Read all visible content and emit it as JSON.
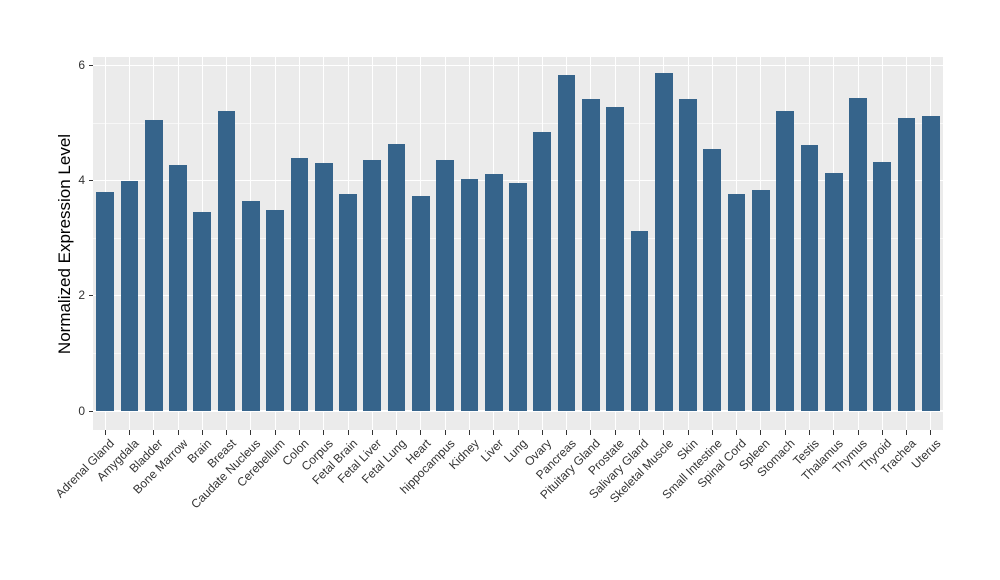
{
  "chart_data": {
    "type": "bar",
    "title": "",
    "xlabel": "",
    "ylabel": "Normalized Expression Level",
    "ylim": [
      0,
      6.2
    ],
    "yticks": [
      0,
      2,
      4,
      6
    ],
    "ytick_labels": [
      "0",
      "2",
      "4",
      "6"
    ],
    "minor_ticks": [
      1,
      3,
      5
    ],
    "legend_position": "none",
    "grid": "white major and minor horizontal lines, white vertical line at each category center, on gray panel",
    "bar_color": "#36648B",
    "panel_bg": "#EBEBEB",
    "major_grid_color": "#FFFFFF",
    "minor_grid_color": "rgba(255,255,255,0.6)",
    "axis_text_color": "#333333",
    "axis_title_color": "#000000",
    "tick_mark_color": "#333333",
    "categories": [
      "Adrenal Gland",
      "Amygdala",
      "Bladder",
      "Bone Marrow",
      "Brain",
      "Breast",
      "Caudate Nucleus",
      "Cerebellum",
      "Colon",
      "Corpus",
      "Fetal Brain",
      "Fetal Liver",
      "Fetal Lung",
      "Heart",
      "hippocampus",
      "Kidney",
      "Liver",
      "Lung",
      "Ovary",
      "Pancreas",
      "Pituitary Gland",
      "Prostate",
      "Salivary Gland",
      "Skeletal Muscle",
      "Skin",
      "Small Intestine",
      "Spinal Cord",
      "Spleen",
      "Stomach",
      "Testis",
      "Thalamus",
      "Thymus",
      "Thyroid",
      "Trachea",
      "Uterus"
    ],
    "values": [
      3.8,
      4.0,
      5.05,
      4.27,
      3.46,
      5.21,
      3.64,
      3.49,
      4.4,
      4.3,
      3.76,
      4.35,
      4.63,
      3.73,
      4.35,
      4.02,
      4.12,
      3.95,
      4.84,
      5.83,
      5.41,
      5.28,
      3.12,
      5.86,
      5.42,
      4.55,
      3.77,
      3.83,
      5.2,
      4.61,
      4.13,
      5.44,
      4.32,
      5.09,
      5.12
    ]
  }
}
